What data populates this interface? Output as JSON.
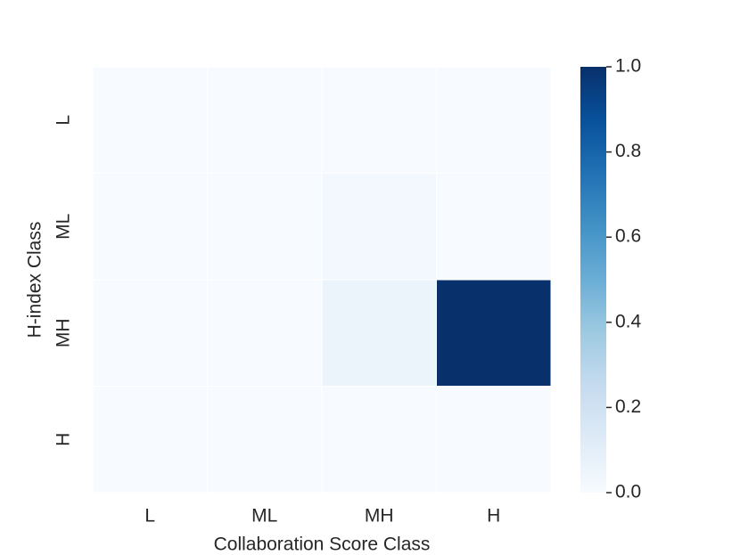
{
  "chart_data": {
    "type": "heatmap",
    "x_label": "Collaboration Score Class",
    "y_label": "H-index Class",
    "x_categories": [
      "L",
      "ML",
      "MH",
      "H"
    ],
    "y_categories": [
      "L",
      "ML",
      "MH",
      "H"
    ],
    "values": [
      [
        0,
        0,
        0,
        0
      ],
      [
        0,
        0,
        0.02,
        0
      ],
      [
        0,
        0,
        0.06,
        1.0
      ],
      [
        0,
        0,
        0,
        0
      ]
    ],
    "colormap": "Blues",
    "clim": [
      0,
      1
    ],
    "cticks": [
      {
        "value": 0,
        "label": "0.0"
      },
      0.2,
      0.4,
      0.6,
      0.8,
      {
        "value": 1,
        "label": "1.0"
      }
    ]
  }
}
